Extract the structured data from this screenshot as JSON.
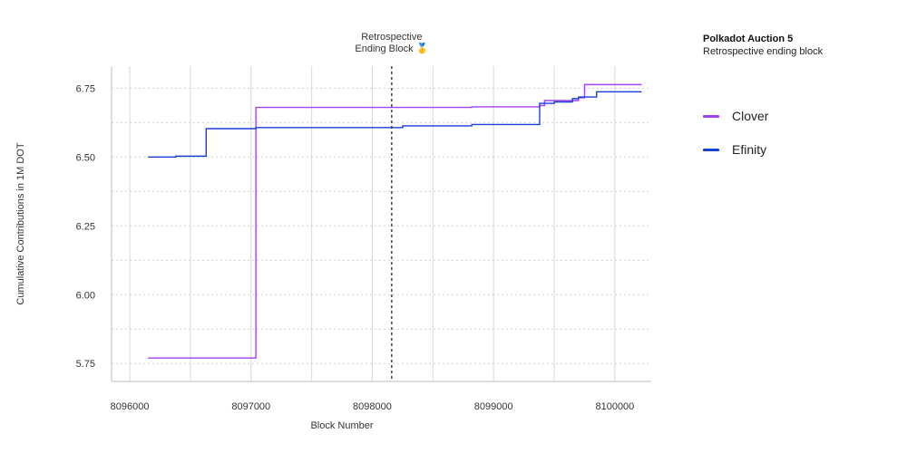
{
  "panel": {
    "title": "Polkadot Auction 5",
    "subtitle": "Retrospective ending block"
  },
  "chart_data": {
    "type": "line",
    "step": true,
    "xlabel": "Block Number",
    "ylabel": "Cumulative Contributions in 1M DOT",
    "xlim": [
      8095850,
      8100300
    ],
    "ylim": [
      5.685,
      6.83
    ],
    "xticks": [
      8096000,
      8097000,
      8098000,
      8099000,
      8100000
    ],
    "xtick_labels": [
      "8096000",
      "8097000",
      "8098000",
      "8099000",
      "8100000"
    ],
    "yticks": [
      5.75,
      6.0,
      6.25,
      6.5,
      6.75
    ],
    "ytick_labels": [
      "5.75",
      "6.00",
      "6.25",
      "6.50",
      "6.75"
    ],
    "grid": true,
    "annotation": {
      "x": 8098160,
      "line1": "Retrospective",
      "line2": "Ending Block 🥇"
    },
    "legend_placement": "right",
    "series": [
      {
        "name": "Clover",
        "color": "#a142f4",
        "x": [
          8096150,
          8097040,
          8098820,
          8099380,
          8099420,
          8099700,
          8099750,
          8100220
        ],
        "y": [
          5.77,
          6.68,
          6.682,
          6.687,
          6.705,
          6.715,
          6.763,
          6.763
        ]
      },
      {
        "name": "Efinity",
        "color": "#1a3fd6",
        "x": [
          8096150,
          8096380,
          8096630,
          8097040,
          8098250,
          8098820,
          8099380,
          8099500,
          8099650,
          8099700,
          8099850,
          8100220
        ],
        "y": [
          6.5,
          6.503,
          6.603,
          6.607,
          6.613,
          6.618,
          6.695,
          6.7,
          6.712,
          6.718,
          6.737,
          6.737
        ]
      }
    ]
  }
}
